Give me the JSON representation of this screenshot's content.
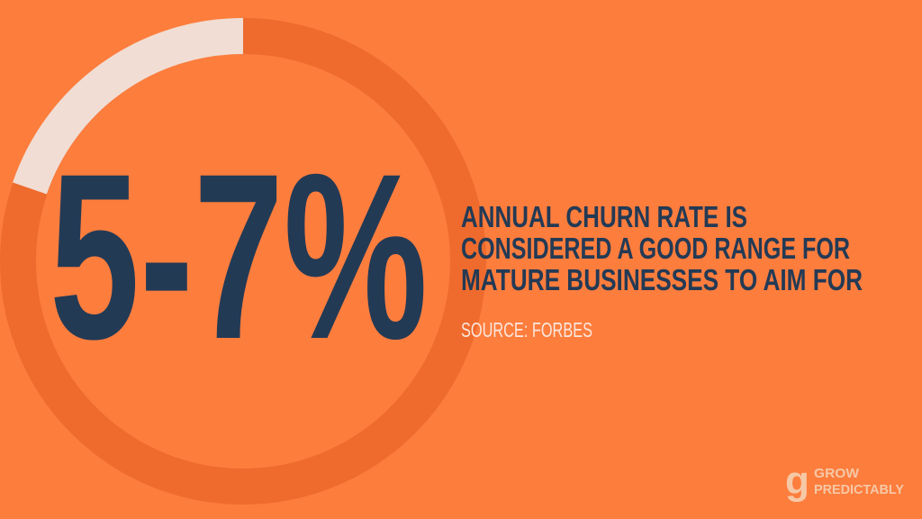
{
  "headline": "5-7%",
  "description": {
    "lines": [
      "ANNUAL CHURN RATE IS",
      "CONSIDERED A GOOD RANGE FOR",
      "MATURE BUSINESSES TO AIM FOR"
    ]
  },
  "source": "SOURCE: FORBES",
  "logo": {
    "mark": "g",
    "lines": [
      "GROW",
      "PREDICTABLY"
    ]
  }
}
